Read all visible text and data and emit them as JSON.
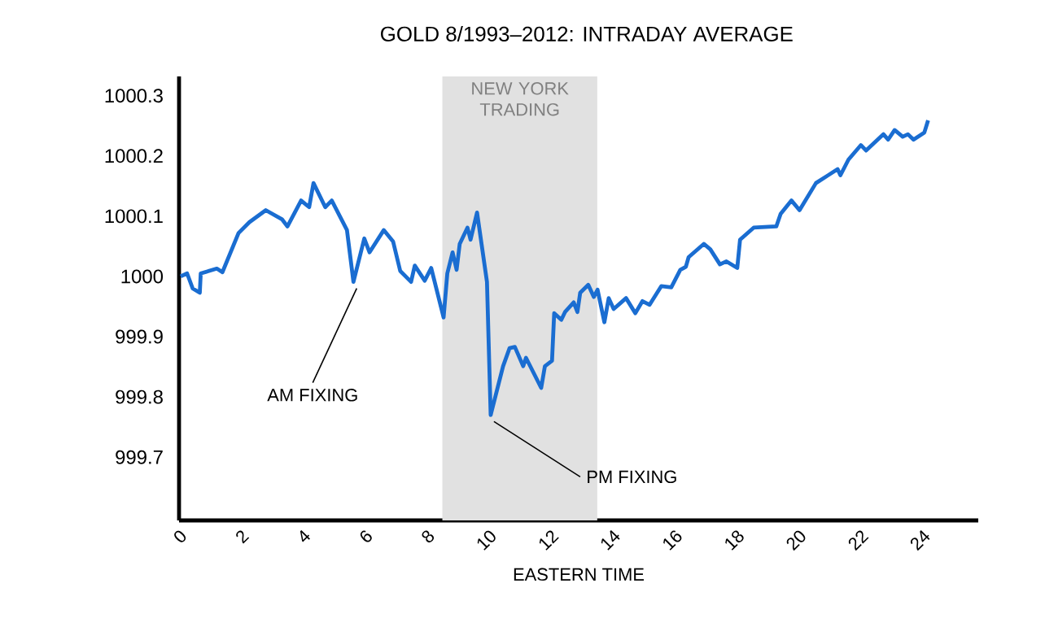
{
  "chart_data": {
    "type": "line",
    "title": "GOLD 8/1993–2012: INTRADAY AVERAGE",
    "xlabel": "EASTERN TIME",
    "x": [
      0.05,
      0.26,
      0.44,
      0.67,
      0.7,
      1.22,
      1.4,
      1.92,
      2.27,
      2.8,
      3.32,
      3.5,
      3.94,
      4.2,
      4.34,
      4.72,
      4.93,
      5.42,
      5.63,
      5.98,
      6.15,
      6.61,
      6.91,
      7.14,
      7.49,
      7.61,
      7.93,
      8.14,
      8.54,
      8.66,
      8.83,
      8.96,
      9.06,
      9.31,
      9.41,
      9.62,
      9.94,
      10.06,
      10.46,
      10.67,
      10.84,
      11.11,
      11.2,
      11.69,
      11.81,
      12.04,
      12.11,
      12.34,
      12.46,
      12.74,
      12.86,
      12.95,
      13.21,
      13.39,
      13.51,
      13.73,
      13.87,
      14.03,
      14.43,
      14.73,
      14.96,
      15.19,
      15.57,
      15.89,
      16.18,
      16.36,
      16.45,
      16.94,
      17.15,
      17.46,
      17.67,
      18.02,
      18.11,
      18.55,
      19.28,
      19.42,
      19.77,
      20.03,
      20.56,
      21.26,
      21.35,
      21.61,
      22.01,
      22.18,
      22.74,
      22.89,
      23.1,
      23.36,
      23.53,
      23.71,
      24.06,
      24.18
    ],
    "values": [
      1000.0,
      1000.005,
      999.98,
      999.973,
      1000.005,
      1000.013,
      1000.007,
      1000.072,
      1000.09,
      1000.11,
      1000.095,
      1000.083,
      1000.126,
      1000.115,
      1000.155,
      1000.115,
      1000.126,
      1000.077,
      999.991,
      1000.063,
      1000.04,
      1000.077,
      1000.058,
      1000.009,
      999.991,
      1000.018,
      999.993,
      1000.014,
      999.932,
      1000.005,
      1000.04,
      1000.011,
      1000.054,
      1000.081,
      1000.061,
      1000.106,
      999.991,
      999.77,
      999.851,
      999.881,
      999.883,
      999.851,
      999.865,
      999.815,
      999.851,
      999.86,
      999.939,
      999.928,
      999.941,
      999.957,
      999.941,
      999.973,
      999.986,
      999.966,
      999.978,
      999.924,
      999.964,
      999.946,
      999.964,
      999.939,
      999.959,
      999.953,
      999.984,
      999.982,
      1000.011,
      1000.016,
      1000.032,
      1000.054,
      1000.045,
      1000.02,
      1000.025,
      1000.014,
      1000.061,
      1000.081,
      1000.083,
      1000.104,
      1000.126,
      1000.11,
      1000.155,
      1000.178,
      1000.168,
      1000.194,
      1000.218,
      1000.209,
      1000.236,
      1000.227,
      1000.243,
      1000.232,
      1000.236,
      1000.227,
      1000.239,
      1000.259
    ],
    "color": "#1a6dd1",
    "xlim": [
      0,
      25.8
    ],
    "xticks": [
      0,
      2,
      4,
      6,
      8,
      10,
      12,
      14,
      16,
      18,
      20,
      22,
      24
    ],
    "ylim": [
      999.595,
      1000.332
    ],
    "yticks": [
      999.7,
      999.8,
      999.9,
      1000,
      1000.1,
      1000.2,
      1000.3
    ],
    "bands": [
      {
        "axis": "x",
        "from": 8.5,
        "to": 13.5,
        "label": "NEW YORK TRADING",
        "color": "#e1e1e1"
      }
    ],
    "annotations": [
      {
        "text": "AM FIXING",
        "x": 5.63,
        "y": 999.991
      },
      {
        "text": "PM FIXING",
        "x": 10.06,
        "y": 999.77
      }
    ]
  }
}
